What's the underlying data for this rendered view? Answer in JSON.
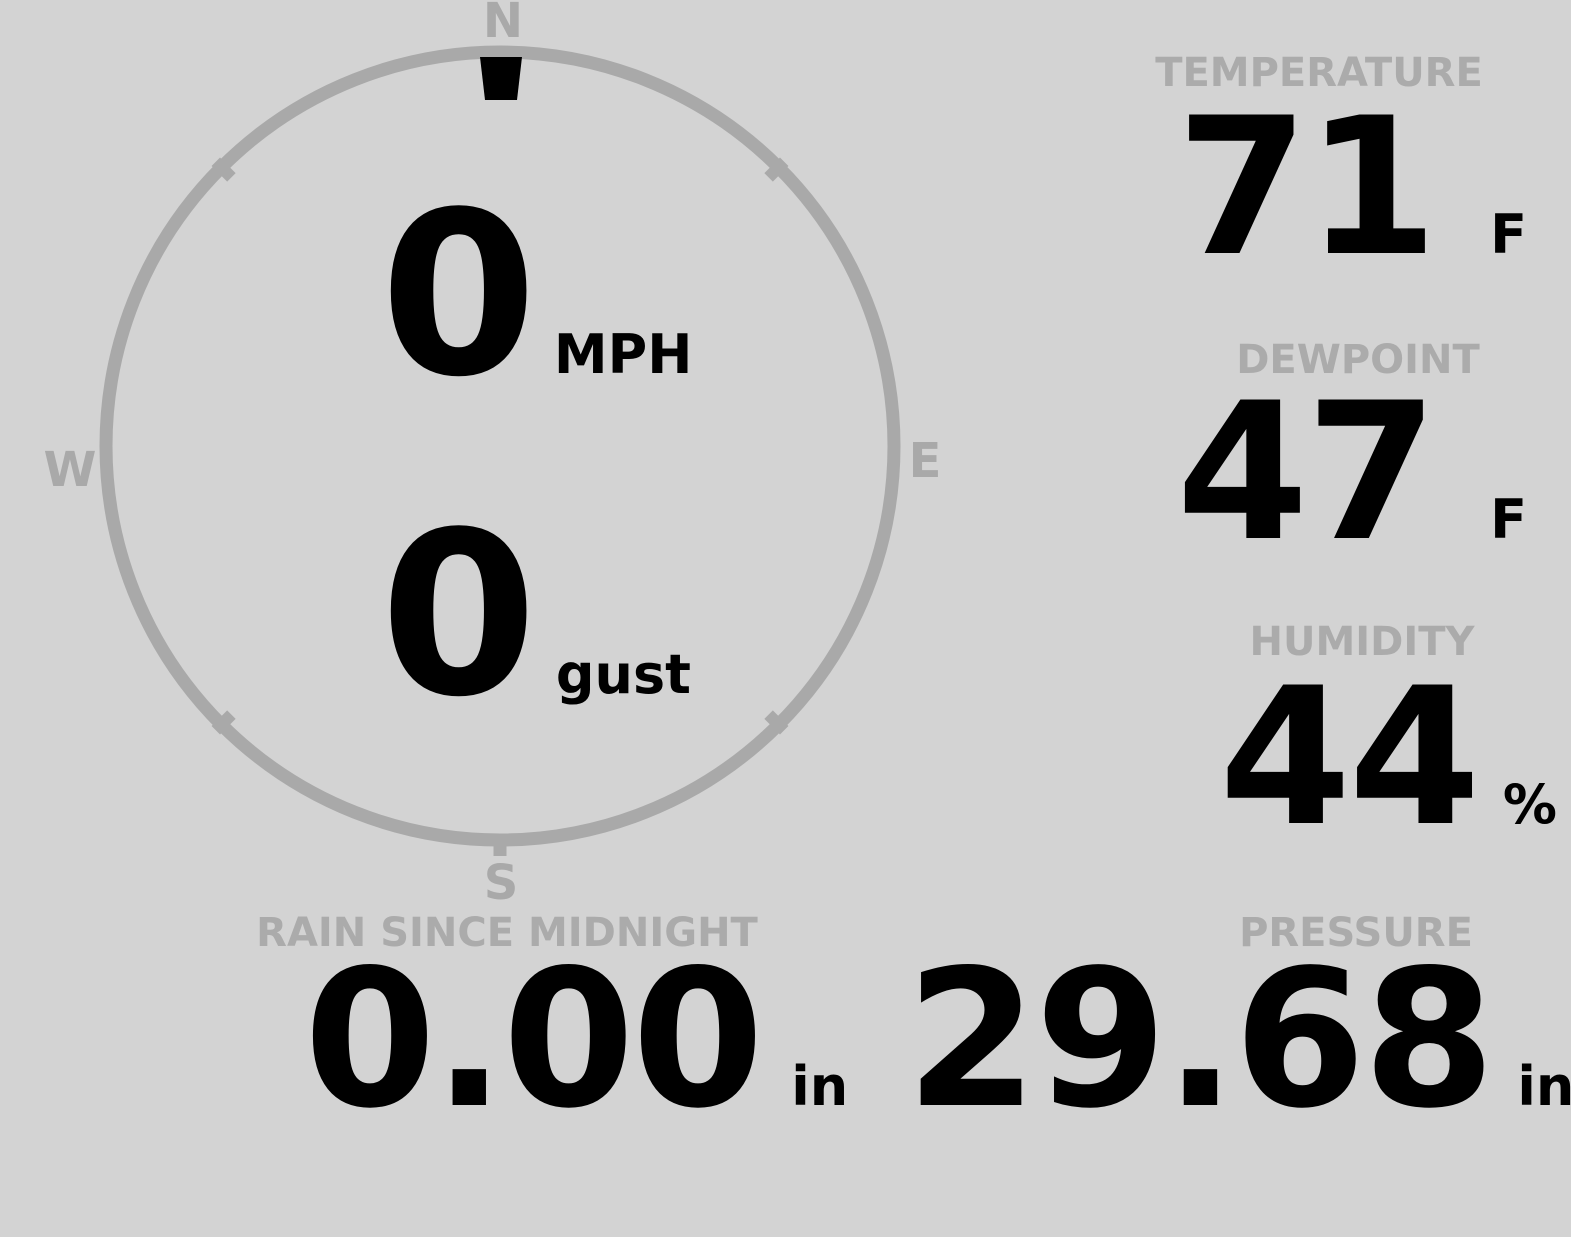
{
  "theme": {
    "background": "#d3d3d3",
    "muted": "#a9a9a9",
    "label": "#ababab",
    "text": "#000000"
  },
  "wind": {
    "compass": {
      "north_label": "N",
      "east_label": "E",
      "south_label": "S",
      "west_label": "W",
      "direction_deg": 0
    },
    "speed": {
      "value": "0",
      "unit": "MPH"
    },
    "gust": {
      "value": "0",
      "unit": "gust"
    }
  },
  "metrics": {
    "temperature": {
      "label": "TEMPERATURE",
      "value": "71",
      "unit": "F"
    },
    "dewpoint": {
      "label": "DEWPOINT",
      "value": "47",
      "unit": "F"
    },
    "humidity": {
      "label": "HUMIDITY",
      "value": "44",
      "unit": "%"
    },
    "rain": {
      "label": "RAIN SINCE MIDNIGHT",
      "value": "0.00",
      "unit": "in"
    },
    "pressure": {
      "label": "PRESSURE",
      "value": "29.68",
      "unit": "in"
    }
  }
}
